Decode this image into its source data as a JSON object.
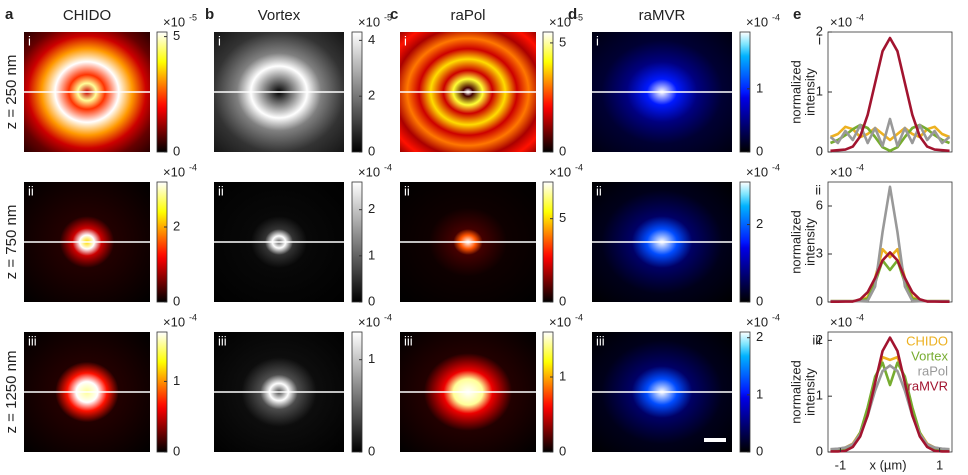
{
  "panel_letters": [
    "a",
    "b",
    "c",
    "d",
    "e"
  ],
  "depths": [
    "z = 250 nm",
    "z = 750 nm",
    "z = 1250 nm"
  ],
  "row_numerals": [
    "i",
    "ii",
    "iii"
  ],
  "columns": [
    {
      "title": "CHIDO",
      "colormap": "hot",
      "maps": [
        {
          "clim": [
            0,
            5.2
          ],
          "ticks": [
            0,
            5
          ],
          "scale": {
            "base": "×10",
            "exponent": "-5"
          }
        },
        {
          "clim": [
            0,
            3.2
          ],
          "ticks": [
            0,
            2
          ],
          "scale": {
            "base": "×10",
            "exponent": "-4"
          }
        },
        {
          "clim": [
            0,
            1.7
          ],
          "ticks": [
            0,
            1
          ],
          "scale": {
            "base": "×10",
            "exponent": "-4"
          }
        }
      ]
    },
    {
      "title": "Vortex",
      "colormap": "gray",
      "maps": [
        {
          "clim": [
            0,
            4.3
          ],
          "ticks": [
            0,
            2,
            4
          ],
          "scale": {
            "base": "×10",
            "exponent": "-5"
          }
        },
        {
          "clim": [
            0,
            2.6
          ],
          "ticks": [
            0,
            1,
            2
          ],
          "scale": {
            "base": "×10",
            "exponent": "-4"
          }
        },
        {
          "clim": [
            0,
            1.3
          ],
          "ticks": [
            0,
            1
          ],
          "scale": {
            "base": "×10",
            "exponent": "-4"
          }
        }
      ]
    },
    {
      "title": "raPol",
      "colormap": "hot",
      "maps": [
        {
          "clim": [
            0,
            5.5
          ],
          "ticks": [
            0,
            5
          ],
          "scale": {
            "base": "×10",
            "exponent": "-5"
          }
        },
        {
          "clim": [
            0,
            7.2
          ],
          "ticks": [
            0,
            5
          ],
          "scale": {
            "base": "×10",
            "exponent": "-4"
          }
        },
        {
          "clim": [
            0,
            1.6
          ],
          "ticks": [
            0,
            1
          ],
          "scale": {
            "base": "×10",
            "exponent": "-4"
          }
        }
      ]
    },
    {
      "title": "raMVR",
      "colormap": "blue",
      "maps": [
        {
          "clim": [
            0,
            1.9
          ],
          "ticks": [
            0,
            1
          ],
          "scale": {
            "base": "×10",
            "exponent": "-4"
          }
        },
        {
          "clim": [
            0,
            3.1
          ],
          "ticks": [
            0,
            2
          ],
          "scale": {
            "base": "×10",
            "exponent": "-4"
          }
        },
        {
          "clim": [
            0,
            2.1
          ],
          "ticks": [
            0,
            1,
            2
          ],
          "scale": {
            "base": "×10",
            "exponent": "-4"
          }
        }
      ]
    }
  ],
  "chart_data": [
    {
      "type": "line",
      "panel": "i",
      "y_label": [
        "normalized",
        "intensity"
      ],
      "scale": {
        "base": "×10",
        "exponent": "-4"
      },
      "x": [
        -1.2,
        -1.05,
        -0.9,
        -0.75,
        -0.6,
        -0.45,
        -0.3,
        -0.15,
        0,
        0.15,
        0.3,
        0.45,
        0.6,
        0.75,
        0.9,
        1.05,
        1.2
      ],
      "xlim": [
        -1.25,
        1.25
      ],
      "ylim": [
        0,
        2
      ],
      "yticks": [
        0,
        1,
        2
      ],
      "series": [
        {
          "color": "#edb120",
          "values": [
            0.25,
            0.3,
            0.42,
            0.38,
            0.25,
            0.3,
            0.4,
            0.3,
            0.2,
            0.3,
            0.4,
            0.3,
            0.25,
            0.38,
            0.42,
            0.3,
            0.25
          ]
        },
        {
          "color": "#77ac30",
          "values": [
            0.15,
            0.2,
            0.28,
            0.38,
            0.45,
            0.4,
            0.25,
            0.08,
            0.02,
            0.08,
            0.25,
            0.4,
            0.45,
            0.38,
            0.28,
            0.2,
            0.15
          ]
        },
        {
          "color": "#999999",
          "values": [
            0.25,
            0.15,
            0.35,
            0.2,
            0.45,
            0.15,
            0.4,
            0.1,
            0.55,
            0.1,
            0.4,
            0.15,
            0.45,
            0.2,
            0.35,
            0.15,
            0.25
          ]
        },
        {
          "color": "#a2142f",
          "values": [
            0.02,
            0.03,
            0.04,
            0.09,
            0.26,
            0.62,
            1.15,
            1.68,
            1.9,
            1.68,
            1.15,
            0.62,
            0.26,
            0.09,
            0.04,
            0.03,
            0.02
          ]
        }
      ]
    },
    {
      "type": "line",
      "panel": "ii",
      "y_label": [
        "normalized",
        "intensity"
      ],
      "scale": {
        "base": "×10",
        "exponent": "-4"
      },
      "x": [
        -1.2,
        -1.05,
        -0.9,
        -0.75,
        -0.6,
        -0.45,
        -0.3,
        -0.15,
        0,
        0.15,
        0.3,
        0.45,
        0.6,
        0.75,
        0.9,
        1.05,
        1.2
      ],
      "xlim": [
        -1.25,
        1.25
      ],
      "ylim": [
        0,
        7.5
      ],
      "yticks": [
        0,
        3,
        6
      ],
      "series": [
        {
          "color": "#edb120",
          "values": [
            0.05,
            0.05,
            0.05,
            0.05,
            0.1,
            0.3,
            1.5,
            3.3,
            2.8,
            3.3,
            1.5,
            0.3,
            0.1,
            0.05,
            0.05,
            0.05,
            0.05
          ]
        },
        {
          "color": "#77ac30",
          "values": [
            0.05,
            0.05,
            0.05,
            0.05,
            0.1,
            0.2,
            1.2,
            2.6,
            2.0,
            2.6,
            1.2,
            0.2,
            0.1,
            0.05,
            0.05,
            0.05,
            0.05
          ]
        },
        {
          "color": "#999999",
          "values": [
            0.05,
            0.05,
            0.05,
            0.05,
            0.05,
            0.08,
            0.97,
            4.37,
            7.2,
            4.37,
            0.97,
            0.08,
            0.05,
            0.05,
            0.05,
            0.05,
            0.05
          ]
        },
        {
          "color": "#a2142f",
          "values": [
            0.02,
            0.02,
            0.03,
            0.03,
            0.17,
            0.61,
            1.5,
            2.6,
            3.1,
            2.6,
            1.5,
            0.61,
            0.17,
            0.03,
            0.03,
            0.02,
            0.02
          ]
        }
      ]
    },
    {
      "type": "line",
      "panel": "iii",
      "y_label": [
        "normalized",
        "intensity"
      ],
      "scale": {
        "base": "×10",
        "exponent": "-4"
      },
      "x": [
        -1.2,
        -1.05,
        -0.9,
        -0.75,
        -0.6,
        -0.45,
        -0.3,
        -0.15,
        0,
        0.15,
        0.3,
        0.45,
        0.6,
        0.75,
        0.9,
        1.05,
        1.2
      ],
      "xlim": [
        -1.25,
        1.25
      ],
      "xticks": [
        -1,
        1
      ],
      "x_label": "x (µm)",
      "ylim": [
        0,
        2.15
      ],
      "yticks": [
        0,
        1,
        2
      ],
      "legend": "upper right",
      "series": [
        {
          "name": "CHIDO",
          "color": "#edb120",
          "values": [
            0.04,
            0.05,
            0.08,
            0.15,
            0.35,
            0.75,
            1.3,
            1.7,
            1.65,
            1.7,
            1.3,
            0.75,
            0.35,
            0.15,
            0.08,
            0.05,
            0.04
          ]
        },
        {
          "name": "Vortex",
          "color": "#77ac30",
          "values": [
            0.02,
            0.03,
            0.05,
            0.12,
            0.35,
            0.8,
            1.35,
            1.6,
            1.2,
            1.6,
            1.35,
            0.8,
            0.35,
            0.12,
            0.05,
            0.03,
            0.02
          ]
        },
        {
          "name": "raPol",
          "color": "#999999",
          "values": [
            0.05,
            0.06,
            0.08,
            0.14,
            0.32,
            0.65,
            1.1,
            1.45,
            1.55,
            1.45,
            1.1,
            0.65,
            0.32,
            0.14,
            0.08,
            0.06,
            0.05
          ]
        },
        {
          "name": "raMVR",
          "color": "#a2142f",
          "values": [
            0.01,
            0.01,
            0.02,
            0.09,
            0.28,
            0.66,
            1.24,
            1.81,
            2.05,
            1.81,
            1.24,
            0.66,
            0.28,
            0.09,
            0.02,
            0.01,
            0.01
          ]
        }
      ]
    }
  ]
}
